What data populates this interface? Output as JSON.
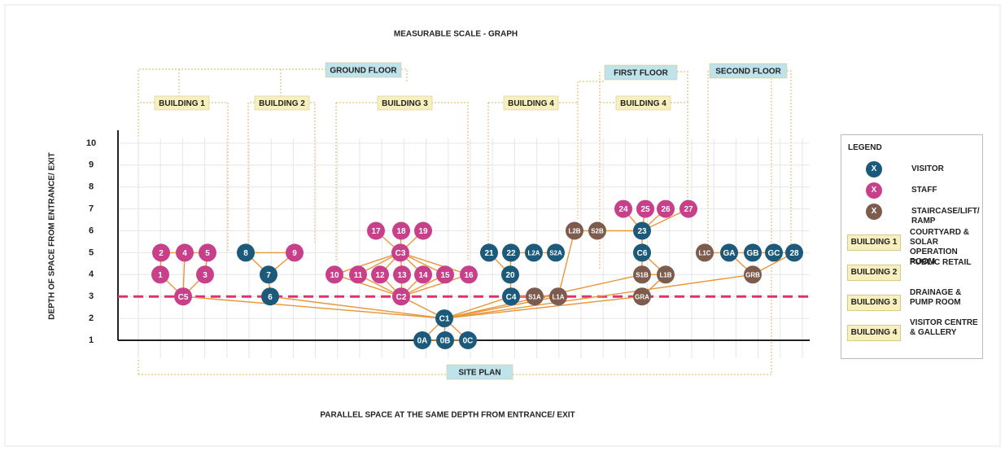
{
  "title": "MEASURABLE SCALE - GRAPH",
  "y_axis_label": "DEPTH OF SPACE FROM ENTRANCE/ EXIT",
  "x_axis_label": "PARALLEL SPACE AT THE SAME DEPTH FROM ENTRANCE/ EXIT",
  "yticks": [
    1,
    2,
    3,
    4,
    5,
    6,
    7,
    8,
    9,
    10
  ],
  "dashed_line_depth": 3,
  "floors": [
    "GROUND FLOOR",
    "FIRST FLOOR",
    "SECOND FLOOR",
    "SITE PLAN"
  ],
  "buildings": [
    "BUILDING 1",
    "BUILDING 2",
    "BUILDING 3",
    "BUILDING 4",
    "BUILDING 4"
  ],
  "legend": {
    "title": "LEGEND",
    "symbols": [
      {
        "symbol": "X",
        "label": "VISITOR",
        "color": "#1b5a7a"
      },
      {
        "symbol": "X",
        "label": "STAFF",
        "color": "#c8408a"
      },
      {
        "symbol": "X",
        "label": "STAIRCASE/LIFT/ RAMP",
        "color": "#7d5c4e"
      }
    ],
    "buildings": [
      {
        "label": "BUILDING 1",
        "description": "COURTYARD & SOLAR OPERATION ROOM"
      },
      {
        "label": "BUILDING 2",
        "description": "PUBLIC RETAIL"
      },
      {
        "label": "BUILDING 3",
        "description": "DRAINAGE & PUMP ROOM"
      },
      {
        "label": "BUILDING 4",
        "description": "VISITOR CENTRE & GALLERY"
      }
    ]
  },
  "nodes": [
    {
      "label": "2",
      "depth": 5,
      "legend": 1
    },
    {
      "label": "4",
      "depth": 5,
      "legend": 1
    },
    {
      "label": "5",
      "depth": 5,
      "legend": 1
    },
    {
      "label": "1",
      "depth": 4,
      "legend": 1
    },
    {
      "label": "3",
      "depth": 4,
      "legend": 1
    },
    {
      "label": "C5",
      "depth": 3,
      "legend": 1
    },
    {
      "label": "8",
      "depth": 5,
      "legend": 0
    },
    {
      "label": "9",
      "depth": 5,
      "legend": 1
    },
    {
      "label": "7",
      "depth": 4,
      "legend": 0
    },
    {
      "label": "6",
      "depth": 3,
      "legend": 0
    },
    {
      "label": "17",
      "depth": 6,
      "legend": 1
    },
    {
      "label": "18",
      "depth": 6,
      "legend": 1
    },
    {
      "label": "19",
      "depth": 6,
      "legend": 1
    },
    {
      "label": "C3",
      "depth": 5,
      "legend": 1
    },
    {
      "label": "10",
      "depth": 4,
      "legend": 1
    },
    {
      "label": "11",
      "depth": 4,
      "legend": 1
    },
    {
      "label": "12",
      "depth": 4,
      "legend": 1
    },
    {
      "label": "13",
      "depth": 4,
      "legend": 1
    },
    {
      "label": "14",
      "depth": 4,
      "legend": 1
    },
    {
      "label": "15",
      "depth": 4,
      "legend": 1
    },
    {
      "label": "16",
      "depth": 4,
      "legend": 1
    },
    {
      "label": "C2",
      "depth": 3,
      "legend": 1
    },
    {
      "label": "C1",
      "depth": 2,
      "legend": 0
    },
    {
      "label": "0A",
      "depth": 1,
      "legend": 0
    },
    {
      "label": "0B",
      "depth": 1,
      "legend": 0
    },
    {
      "label": "0C",
      "depth": 1,
      "legend": 0
    },
    {
      "label": "21",
      "depth": 5,
      "legend": 0
    },
    {
      "label": "22",
      "depth": 5,
      "legend": 0
    },
    {
      "label": "L2A",
      "depth": 5,
      "legend": 0
    },
    {
      "label": "S2A",
      "depth": 5,
      "legend": 0
    },
    {
      "label": "20",
      "depth": 4,
      "legend": 0
    },
    {
      "label": "C4",
      "depth": 3,
      "legend": 0
    },
    {
      "label": "S1A",
      "depth": 3,
      "legend": 2
    },
    {
      "label": "L1A",
      "depth": 3,
      "legend": 2
    },
    {
      "label": "L2B",
      "depth": 6,
      "legend": 2
    },
    {
      "label": "S2B",
      "depth": 6,
      "legend": 2
    },
    {
      "label": "24",
      "depth": 7,
      "legend": 1
    },
    {
      "label": "25",
      "depth": 7,
      "legend": 1
    },
    {
      "label": "26",
      "depth": 7,
      "legend": 1
    },
    {
      "label": "27",
      "depth": 7,
      "legend": 1
    },
    {
      "label": "23",
      "depth": 6,
      "legend": 0
    },
    {
      "label": "C6",
      "depth": 5,
      "legend": 0
    },
    {
      "label": "S1B",
      "depth": 4,
      "legend": 2
    },
    {
      "label": "L1B",
      "depth": 4,
      "legend": 2
    },
    {
      "label": "GRA",
      "depth": 3,
      "legend": 2
    },
    {
      "label": "L1C",
      "depth": 5,
      "legend": 2
    },
    {
      "label": "GA",
      "depth": 5,
      "legend": 0
    },
    {
      "label": "GB",
      "depth": 5,
      "legend": 0
    },
    {
      "label": "GC",
      "depth": 5,
      "legend": 0
    },
    {
      "label": "28",
      "depth": 5,
      "legend": 0
    },
    {
      "label": "GRB",
      "depth": 4,
      "legend": 2
    }
  ],
  "edges": [
    [
      "2",
      "4"
    ],
    [
      "4",
      "5"
    ],
    [
      "2",
      "1"
    ],
    [
      "5",
      "3"
    ],
    [
      "4",
      "C5"
    ],
    [
      "1",
      "C5"
    ],
    [
      "3",
      "C5"
    ],
    [
      "8",
      "9"
    ],
    [
      "8",
      "7"
    ],
    [
      "9",
      "7"
    ],
    [
      "7",
      "6"
    ],
    [
      "C3",
      "17"
    ],
    [
      "C3",
      "18"
    ],
    [
      "C3",
      "19"
    ],
    [
      "C3",
      "10"
    ],
    [
      "C3",
      "11"
    ],
    [
      "C3",
      "12"
    ],
    [
      "C3",
      "13"
    ],
    [
      "C3",
      "14"
    ],
    [
      "C3",
      "15"
    ],
    [
      "C3",
      "16"
    ],
    [
      "C2",
      "10"
    ],
    [
      "C2",
      "11"
    ],
    [
      "C2",
      "12"
    ],
    [
      "C2",
      "13"
    ],
    [
      "C2",
      "14"
    ],
    [
      "C2",
      "15"
    ],
    [
      "C2",
      "16"
    ],
    [
      "C2",
      "C1"
    ],
    [
      "C1",
      "C5"
    ],
    [
      "C1",
      "6"
    ],
    [
      "C1",
      "0A"
    ],
    [
      "C1",
      "0B"
    ],
    [
      "C1",
      "0C"
    ],
    [
      "0A",
      "0B"
    ],
    [
      "0B",
      "0C"
    ],
    [
      "C1",
      "C4"
    ],
    [
      "C4",
      "20"
    ],
    [
      "20",
      "21"
    ],
    [
      "20",
      "22"
    ],
    [
      "22",
      "L2A"
    ],
    [
      "L2A",
      "S2A"
    ],
    [
      "C4",
      "S1A"
    ],
    [
      "S1A",
      "L1A"
    ],
    [
      "C1",
      "L1A"
    ],
    [
      "L1A",
      "L2B"
    ],
    [
      "L2B",
      "S2B"
    ],
    [
      "S2B",
      "23"
    ],
    [
      "23",
      "24"
    ],
    [
      "23",
      "25"
    ],
    [
      "23",
      "26"
    ],
    [
      "23",
      "27"
    ],
    [
      "23",
      "C6"
    ],
    [
      "C6",
      "S1B"
    ],
    [
      "C6",
      "L1B"
    ],
    [
      "S1B",
      "L1B"
    ],
    [
      "C1",
      "S1B"
    ],
    [
      "C1",
      "GRA"
    ],
    [
      "GRA",
      "L1B"
    ],
    [
      "C1",
      "GRB"
    ],
    [
      "GRB",
      "GA"
    ],
    [
      "GRB",
      "28"
    ],
    [
      "L1C",
      "GA"
    ],
    [
      "GA",
      "GB"
    ],
    [
      "GB",
      "GC"
    ],
    [
      "GC",
      "28"
    ]
  ]
}
